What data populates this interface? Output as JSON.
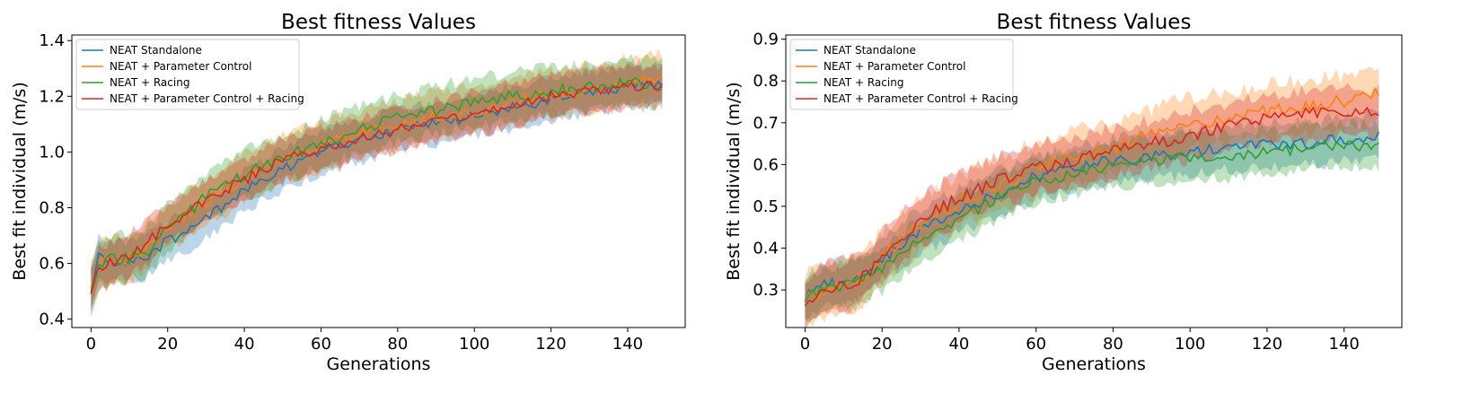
{
  "chart_data": [
    {
      "type": "line",
      "title": "Best fitness Values",
      "xlabel": "Generations",
      "ylabel": "Best fit individual (m/s)",
      "xlim": [
        -5,
        155
      ],
      "ylim": [
        0.37,
        1.42
      ],
      "xticks": [
        0,
        20,
        40,
        60,
        80,
        100,
        120,
        140
      ],
      "yticks": [
        0.4,
        0.6,
        0.8,
        1.0,
        1.2,
        1.4
      ],
      "ytick_labels": [
        "0.4",
        "0.6",
        "0.8",
        "1.0",
        "1.2",
        "1.4"
      ],
      "legend_position": "top-left",
      "grid": false,
      "n_generations": 150,
      "series": [
        {
          "name": "NEAT Standalone",
          "color": "#1f77b4",
          "curve": {
            "x": [
              0,
              2,
              5,
              10,
              15,
              20,
              30,
              40,
              50,
              60,
              70,
              80,
              90,
              100,
              110,
              120,
              130,
              140,
              149
            ],
            "y": [
              0.5,
              0.62,
              0.61,
              0.6,
              0.63,
              0.68,
              0.76,
              0.86,
              0.94,
              1.0,
              1.04,
              1.08,
              1.1,
              1.13,
              1.16,
              1.19,
              1.21,
              1.24,
              1.25
            ]
          },
          "band": 0.07
        },
        {
          "name": "NEAT + Parameter Control",
          "color": "#ff7f0e",
          "curve": {
            "x": [
              0,
              2,
              5,
              10,
              15,
              20,
              30,
              40,
              50,
              60,
              70,
              80,
              90,
              100,
              110,
              120,
              130,
              140,
              149
            ],
            "y": [
              0.52,
              0.6,
              0.6,
              0.62,
              0.67,
              0.73,
              0.82,
              0.91,
              0.98,
              1.02,
              1.06,
              1.1,
              1.13,
              1.15,
              1.18,
              1.21,
              1.23,
              1.25,
              1.27
            ]
          },
          "band": 0.08
        },
        {
          "name": "NEAT + Racing",
          "color": "#2ca02c",
          "curve": {
            "x": [
              0,
              2,
              5,
              10,
              15,
              20,
              30,
              40,
              50,
              60,
              70,
              80,
              90,
              100,
              110,
              120,
              130,
              140,
              149
            ],
            "y": [
              0.5,
              0.6,
              0.62,
              0.62,
              0.65,
              0.72,
              0.84,
              0.92,
              0.98,
              1.03,
              1.08,
              1.12,
              1.15,
              1.18,
              1.2,
              1.22,
              1.23,
              1.25,
              1.24
            ]
          },
          "band": 0.08
        },
        {
          "name": "NEAT + Parameter Control + Racing",
          "color": "#d62728",
          "curve": {
            "x": [
              0,
              2,
              5,
              10,
              15,
              20,
              30,
              40,
              50,
              60,
              70,
              80,
              90,
              100,
              110,
              120,
              130,
              140,
              149
            ],
            "y": [
              0.5,
              0.58,
              0.6,
              0.63,
              0.68,
              0.74,
              0.83,
              0.9,
              0.97,
              1.01,
              1.05,
              1.08,
              1.11,
              1.14,
              1.17,
              1.2,
              1.22,
              1.23,
              1.24
            ]
          },
          "band": 0.07
        }
      ]
    },
    {
      "type": "line",
      "title": "Best fitness Values",
      "xlabel": "Generations",
      "ylabel": "Best fit individual (m/s)",
      "xlim": [
        -5,
        155
      ],
      "ylim": [
        0.21,
        0.91
      ],
      "xticks": [
        0,
        20,
        40,
        60,
        80,
        100,
        120,
        140
      ],
      "yticks": [
        0.3,
        0.4,
        0.5,
        0.6,
        0.7,
        0.8,
        0.9
      ],
      "ytick_labels": [
        "0.3",
        "0.4",
        "0.5",
        "0.6",
        "0.7",
        "0.8",
        "0.9"
      ],
      "legend_position": "top-left",
      "grid": false,
      "n_generations": 150,
      "series": [
        {
          "name": "NEAT Standalone",
          "color": "#1f77b4",
          "curve": {
            "x": [
              0,
              5,
              10,
              15,
              20,
              30,
              40,
              50,
              60,
              70,
              80,
              90,
              100,
              110,
              120,
              130,
              140,
              149
            ],
            "y": [
              0.28,
              0.31,
              0.32,
              0.33,
              0.37,
              0.44,
              0.49,
              0.53,
              0.57,
              0.59,
              0.61,
              0.62,
              0.63,
              0.64,
              0.65,
              0.65,
              0.66,
              0.67
            ]
          },
          "band": 0.05
        },
        {
          "name": "NEAT + Parameter Control",
          "color": "#ff7f0e",
          "curve": {
            "x": [
              0,
              5,
              10,
              15,
              20,
              30,
              40,
              50,
              60,
              70,
              80,
              90,
              100,
              110,
              120,
              130,
              140,
              149
            ],
            "y": [
              0.28,
              0.3,
              0.31,
              0.33,
              0.38,
              0.46,
              0.51,
              0.55,
              0.59,
              0.62,
              0.64,
              0.67,
              0.7,
              0.71,
              0.73,
              0.74,
              0.75,
              0.77
            ]
          },
          "band": 0.06
        },
        {
          "name": "NEAT + Racing",
          "color": "#2ca02c",
          "curve": {
            "x": [
              0,
              5,
              10,
              15,
              20,
              30,
              40,
              50,
              60,
              70,
              80,
              90,
              100,
              110,
              120,
              130,
              140,
              149
            ],
            "y": [
              0.28,
              0.3,
              0.31,
              0.32,
              0.35,
              0.42,
              0.47,
              0.52,
              0.56,
              0.58,
              0.6,
              0.61,
              0.62,
              0.62,
              0.63,
              0.64,
              0.65,
              0.64
            ]
          },
          "band": 0.05
        },
        {
          "name": "NEAT + Parameter Control + Racing",
          "color": "#d62728",
          "curve": {
            "x": [
              0,
              5,
              10,
              15,
              20,
              30,
              40,
              50,
              60,
              70,
              80,
              90,
              100,
              110,
              120,
              130,
              140,
              149
            ],
            "y": [
              0.27,
              0.3,
              0.31,
              0.33,
              0.38,
              0.47,
              0.52,
              0.56,
              0.59,
              0.61,
              0.63,
              0.65,
              0.67,
              0.69,
              0.71,
              0.72,
              0.73,
              0.72
            ]
          },
          "band": 0.055
        }
      ]
    }
  ]
}
